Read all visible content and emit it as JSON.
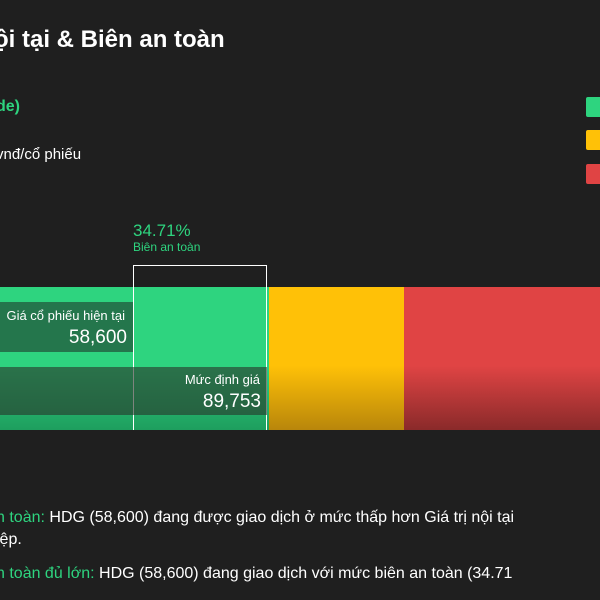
{
  "chart_data": {
    "type": "bar",
    "title": "ội tại & Biên an toàn",
    "subtitle": "de)",
    "unit_label": "vnđ/cổ phiếu",
    "zones": [
      {
        "color": "#2ed47f",
        "from": 0,
        "to": 89753,
        "gradient_to": "#1e9e5e"
      },
      {
        "color": "#ffc107",
        "from": 89753,
        "to": 134630,
        "gradient_to": "#b8860b"
      },
      {
        "color": "#e04444",
        "from": 134630,
        "to": 224383,
        "gradient_to": "#8a2a2a"
      }
    ],
    "x_view_min": 0,
    "x_view_max": 200000,
    "current_price": {
      "label": "Giá cổ phiếu hiện tại",
      "value": 58600,
      "display": "58,600"
    },
    "valuation": {
      "label": "Mức định giá",
      "value": 89753,
      "display": "89,753"
    },
    "safety_margin": {
      "percent_display": "34.71%",
      "label": "Biên an toàn"
    },
    "legend_colors": [
      "#2ed47f",
      "#ffc107",
      "#e04444"
    ]
  },
  "notes": {
    "line1_highlight": "n toàn:",
    "line1_text": " HDG (58,600) đang được giao dịch ở mức thấp hơn Giá trị nội tại",
    "line1b_text": "iệp.",
    "line2_highlight": "n toàn đủ lớn:",
    "line2_text": " HDG (58,600) đang giao dịch với mức biên an toàn (34.71"
  }
}
